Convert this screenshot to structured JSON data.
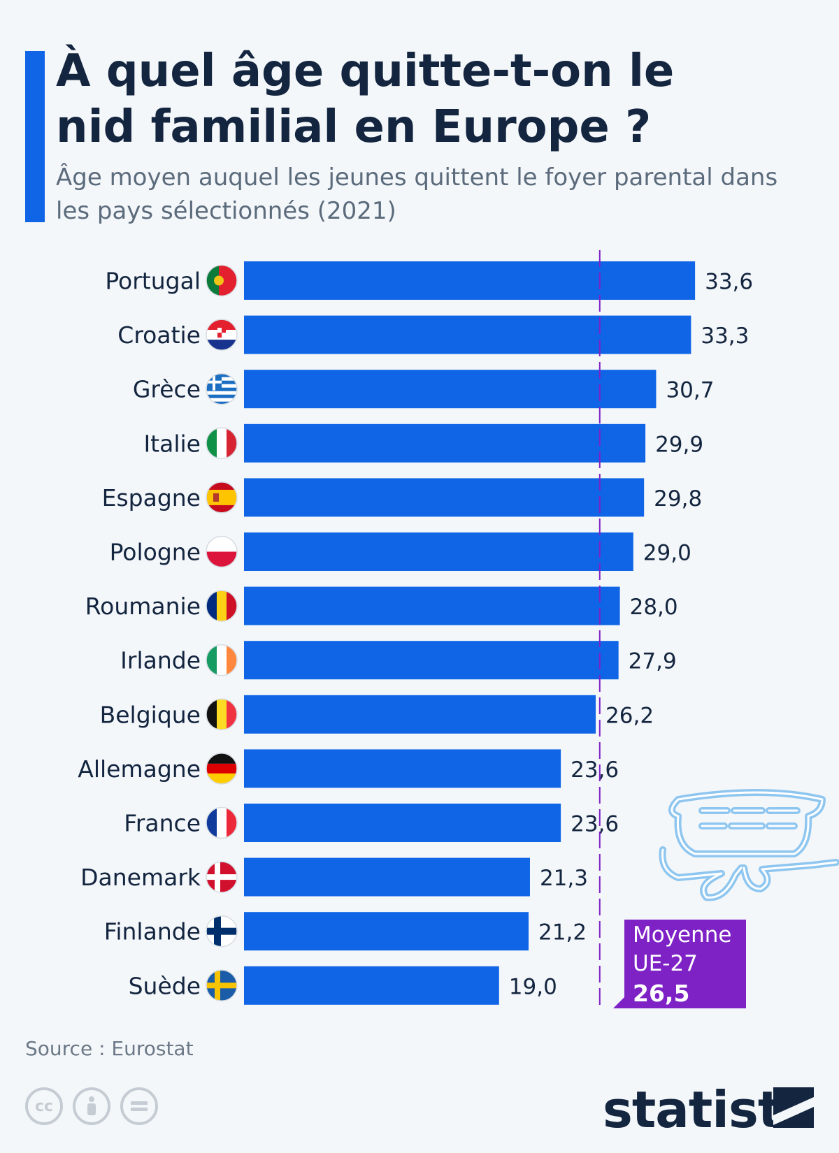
{
  "header": {
    "title": "À quel âge quitte-t-on le nid familial en Europe ?",
    "subtitle": "Âge moyen auquel les jeunes quittent le foyer parental dans les pays sélectionnés (2021)"
  },
  "chart_data": {
    "type": "bar",
    "orientation": "horizontal",
    "title": "À quel âge quitte-t-on le nid familial en Europe ?",
    "xlabel": "",
    "ylabel": "",
    "xlim": [
      0,
      37.7
    ],
    "categories": [
      "Portugal",
      "Croatie",
      "Grèce",
      "Italie",
      "Espagne",
      "Pologne",
      "Roumanie",
      "Irlande",
      "Belgique",
      "Allemagne",
      "France",
      "Danemark",
      "Finlande",
      "Suède"
    ],
    "values": [
      33.6,
      33.3,
      30.7,
      29.9,
      29.8,
      29.0,
      28.0,
      27.9,
      26.2,
      23.6,
      23.6,
      21.3,
      21.2,
      19.0
    ],
    "value_labels": [
      "33,6",
      "33,3",
      "30,7",
      "29,9",
      "29,8",
      "29,0",
      "28,0",
      "27,9",
      "26,2",
      "23,6",
      "23,6",
      "21,3",
      "21,2",
      "19,0"
    ],
    "flag_icons": [
      "portugal-flag-icon",
      "croatia-flag-icon",
      "greece-flag-icon",
      "italy-flag-icon",
      "spain-flag-icon",
      "poland-flag-icon",
      "romania-flag-icon",
      "ireland-flag-icon",
      "belgium-flag-icon",
      "germany-flag-icon",
      "france-flag-icon",
      "denmark-flag-icon",
      "finland-flag-icon",
      "sweden-flag-icon"
    ],
    "reference_line": {
      "value": 26.5,
      "label_line1": "Moyenne",
      "label_line2": "UE-27",
      "value_label": "26,5"
    },
    "bar_color": "#0f65e6",
    "reference_color": "#7e22c6"
  },
  "footer": {
    "source": "Source : Eurostat",
    "brand": "statista",
    "license_icons": [
      "cc-icon",
      "attribution-icon",
      "no-derivatives-icon"
    ]
  }
}
